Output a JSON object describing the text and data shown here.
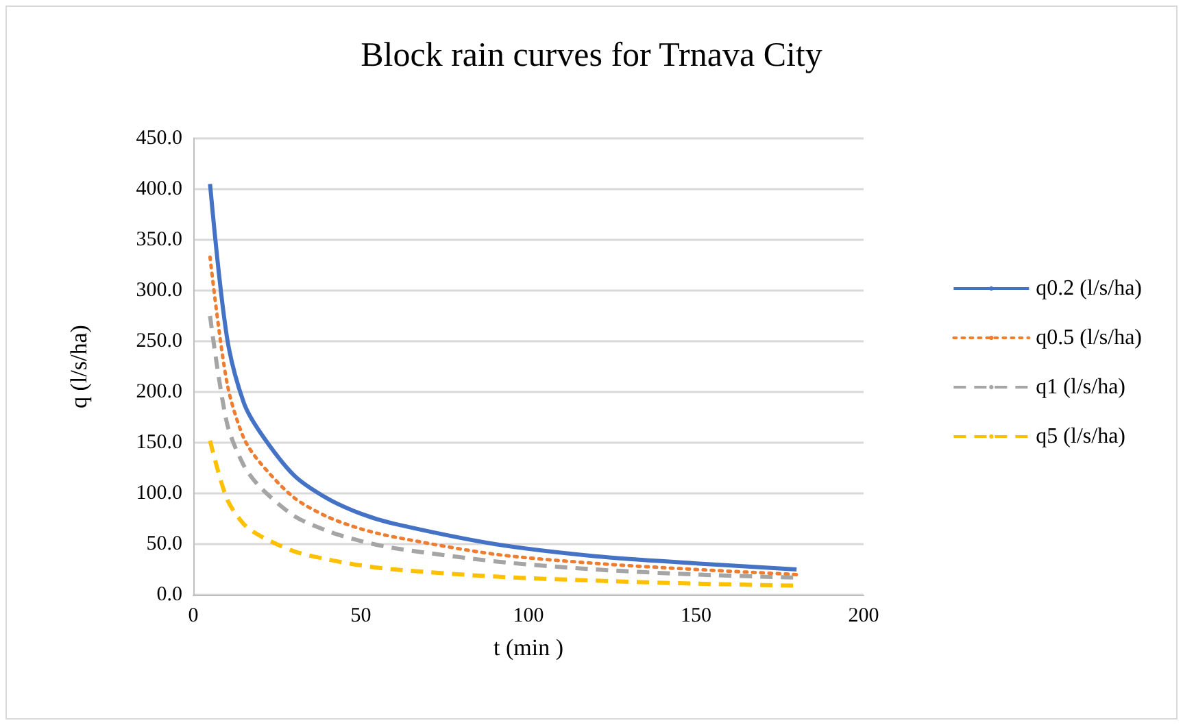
{
  "chart_data": {
    "type": "line",
    "title": "Block rain curves for Trnava City",
    "xlabel": "t (min )",
    "ylabel": "q (l/s/ha)",
    "x": [
      5,
      10,
      15,
      20,
      30,
      40,
      50,
      60,
      90,
      120,
      150,
      180
    ],
    "series": [
      {
        "name": "q0.2 (l/s/ha)",
        "color": "#4472c4",
        "line_style": "solid",
        "values": [
          405,
          255,
          190,
          160,
          118,
          95,
          80,
          70,
          50,
          38,
          31,
          25
        ]
      },
      {
        "name": "q0.5 (l/s/ha)",
        "color": "#ed7d31",
        "line_style": "dotted",
        "values": [
          333,
          210,
          155,
          130,
          96,
          77,
          65,
          57,
          40,
          31,
          25,
          20
        ]
      },
      {
        "name": "q1 (l/s/ha)",
        "color": "#a5a5a5",
        "line_style": "dashed",
        "values": [
          275,
          170,
          128,
          106,
          78,
          63,
          53,
          46,
          33,
          25,
          20,
          17
        ]
      },
      {
        "name": "q5 (l/s/ha)",
        "color": "#ffc000",
        "line_style": "dashed",
        "values": [
          152,
          95,
          70,
          58,
          43,
          35,
          29,
          25,
          18,
          14,
          11,
          9
        ]
      }
    ],
    "xlim": [
      0,
      200
    ],
    "xticks": [
      0,
      50,
      100,
      150,
      200
    ],
    "ylim": [
      0,
      450
    ],
    "yticks": [
      {
        "value": 0,
        "label": "0.0"
      },
      {
        "value": 50,
        "label": "50.0"
      },
      {
        "value": 100,
        "label": "100.0"
      },
      {
        "value": 150,
        "label": "150.0"
      },
      {
        "value": 200,
        "label": "200.0"
      },
      {
        "value": 250,
        "label": "250.0"
      },
      {
        "value": 300,
        "label": "300.0"
      },
      {
        "value": 350,
        "label": "350.0"
      },
      {
        "value": 400,
        "label": "400.0"
      },
      {
        "value": 450,
        "label": "450.0"
      }
    ],
    "grid": "y",
    "legend": "right",
    "marker": "none"
  }
}
